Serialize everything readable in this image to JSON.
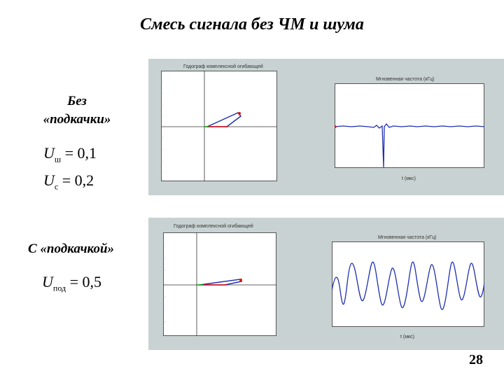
{
  "slide": {
    "title": "Смесь сигнала без ЧМ и шума",
    "page_number": "28"
  },
  "panels": [
    {
      "label_lines": [
        "Без",
        "«подкачки»"
      ],
      "formulas": [
        {
          "var": "U",
          "sub": "ш",
          "value": "= 0,1"
        },
        {
          "var": "U",
          "sub": "с",
          "value": "= 0,2"
        }
      ],
      "hodograph_title": "Годограф комплексной огибающей",
      "frequency_title": "Мгновенная частота (кГц)",
      "frequency_xlabel": "t (мкс)"
    },
    {
      "label_lines": [
        "С «подкачкой»"
      ],
      "formulas": [
        {
          "var": "U",
          "sub": "под",
          "value": "= 0,5"
        }
      ],
      "hodograph_title": "Годограф комплексной огибающей",
      "frequency_title": "Мгновенная частота (кГц)",
      "frequency_xlabel": "t (мкс)"
    }
  ],
  "colors": {
    "panel_bg": "#c9d2d2",
    "trace": "#1f2fb0",
    "red_line": "#e01010",
    "green_line": "#10a010"
  }
}
